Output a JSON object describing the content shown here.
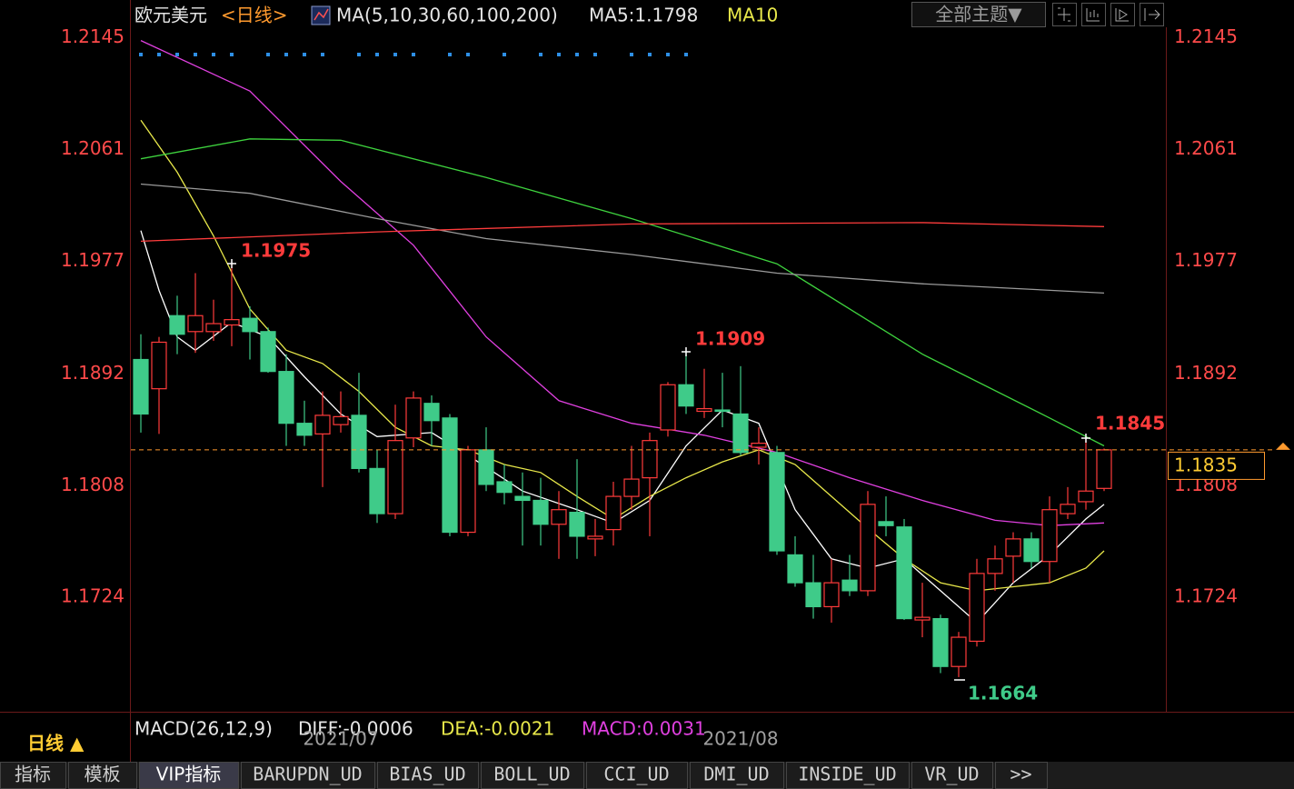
{
  "chart_data": {
    "type": "candlestick",
    "title": "欧元美元",
    "period": "<日线>",
    "indicator_label": "MA(5,10,30,60,100,200)",
    "ma_readouts": [
      "MA5:1.1798",
      "MA10"
    ],
    "categories": [
      null,
      null,
      null,
      null,
      null,
      null,
      null,
      null,
      null,
      null,
      null,
      "2021/07",
      null,
      null,
      null,
      null,
      null,
      null,
      null,
      null,
      null,
      null,
      null,
      null,
      null,
      null,
      null,
      null,
      null,
      null,
      null,
      null,
      null,
      "2021/08",
      null,
      null,
      null,
      null,
      null,
      null,
      null,
      null,
      null,
      null,
      null,
      null,
      null,
      null,
      null,
      null,
      null,
      null,
      null,
      null
    ],
    "open": [
      1.1903,
      1.1881,
      1.1936,
      1.1924,
      1.1924,
      1.1929,
      1.1934,
      1.1924,
      1.1894,
      1.1855,
      1.1847,
      1.1854,
      1.1861,
      1.1821,
      1.1787,
      1.1844,
      1.187,
      1.1859,
      1.1773,
      1.1835,
      1.1811,
      1.18,
      1.1797,
      1.1779,
      1.1788,
      1.1768,
      1.1775,
      1.18,
      1.1814,
      1.185,
      1.1884,
      1.1864,
      1.1865,
      1.1862,
      1.1837,
      1.1833,
      1.1756,
      1.1735,
      1.1717,
      1.1737,
      1.1729,
      1.1781,
      1.1777,
      1.1707,
      1.1708,
      1.1672,
      1.1691,
      1.1742,
      1.1755,
      1.1768,
      1.1751,
      1.1787,
      1.1796,
      1.1806
    ],
    "close": [
      1.1862,
      1.1916,
      1.1922,
      1.1936,
      1.193,
      1.1933,
      1.1924,
      1.1894,
      1.1855,
      1.1846,
      1.1861,
      1.186,
      1.1821,
      1.1787,
      1.1842,
      1.1874,
      1.1857,
      1.1773,
      1.1835,
      1.1809,
      1.1803,
      1.1797,
      1.1779,
      1.179,
      1.177,
      1.177,
      1.18,
      1.1813,
      1.1842,
      1.1884,
      1.1868,
      1.1866,
      1.1864,
      1.1833,
      1.184,
      1.1759,
      1.1735,
      1.1717,
      1.1735,
      1.1729,
      1.1794,
      1.1778,
      1.1708,
      1.1709,
      1.1672,
      1.1694,
      1.1742,
      1.1753,
      1.1768,
      1.1751,
      1.179,
      1.1794,
      1.1804,
      1.1835
    ],
    "high": [
      1.1922,
      1.192,
      1.1951,
      1.1968,
      1.1948,
      1.1975,
      1.1943,
      1.1927,
      1.1907,
      1.1872,
      1.1879,
      1.1879,
      1.1893,
      1.1835,
      1.1869,
      1.1879,
      1.1876,
      1.1862,
      1.1838,
      1.1852,
      1.1824,
      1.1818,
      1.1814,
      1.1804,
      1.1828,
      1.1783,
      1.1811,
      1.1838,
      1.1848,
      1.1886,
      1.1909,
      1.1896,
      1.1893,
      1.1898,
      1.1852,
      1.1838,
      1.177,
      1.1756,
      1.1753,
      1.1756,
      1.1804,
      1.18,
      1.1783,
      1.1735,
      1.1711,
      1.1698,
      1.1753,
      1.1763,
      1.1773,
      1.1773,
      1.18,
      1.1807,
      1.1845,
      1.1836
    ],
    "low": [
      1.1848,
      1.1847,
      1.1907,
      1.1908,
      1.1917,
      1.1913,
      1.1903,
      1.1893,
      1.1838,
      1.1838,
      1.1807,
      1.1848,
      1.1818,
      1.178,
      1.1783,
      1.1837,
      1.1838,
      1.177,
      1.177,
      1.1804,
      1.1794,
      1.1763,
      1.1763,
      1.1753,
      1.1753,
      1.1755,
      1.1763,
      1.179,
      1.177,
      1.1845,
      1.1862,
      1.1859,
      1.1852,
      1.1831,
      1.1824,
      1.1756,
      1.1732,
      1.1708,
      1.1705,
      1.1725,
      1.1725,
      1.177,
      1.1707,
      1.1694,
      1.1667,
      1.1664,
      1.1687,
      1.1729,
      1.1735,
      1.1746,
      1.1735,
      1.1783,
      1.179,
      1.1804
    ],
    "up_color": "#ff3b3b",
    "down_color": "#3fcb89",
    "ylim": [
      1.164,
      1.2153
    ],
    "yticks": [
      1.2145,
      1.2061,
      1.1977,
      1.1892,
      1.1808,
      1.1724
    ],
    "tick_color": "#ff4a4a",
    "grid": false,
    "current_price": 1.1835,
    "series": [
      {
        "color": "#ffffff",
        "x": [
          0,
          1,
          2,
          3,
          5,
          7,
          9,
          11,
          13,
          16,
          18,
          21,
          24,
          26,
          28,
          30,
          32,
          34,
          36,
          38,
          40,
          42,
          44,
          46,
          48,
          50,
          52,
          53
        ],
        "values": [
          1.2,
          1.1955,
          1.192,
          1.191,
          1.1931,
          1.192,
          1.189,
          1.1862,
          1.1845,
          1.1848,
          1.1831,
          1.1804,
          1.179,
          1.178,
          1.1797,
          1.1838,
          1.1865,
          1.1855,
          1.179,
          1.1753,
          1.1746,
          1.1753,
          1.1729,
          1.1705,
          1.1735,
          1.1756,
          1.1783,
          1.1794
        ]
      },
      {
        "color": "#e8e84a",
        "x": [
          0,
          2,
          4,
          6,
          8,
          10,
          12,
          14,
          16,
          18,
          20,
          22,
          24,
          26,
          28,
          30,
          32,
          34,
          36,
          38,
          40,
          42,
          44,
          46,
          48,
          50,
          52,
          53
        ],
        "values": [
          1.2083,
          1.2044,
          1.1996,
          1.1941,
          1.191,
          1.19,
          1.1879,
          1.1852,
          1.1838,
          1.1835,
          1.1824,
          1.1818,
          1.18,
          1.1783,
          1.18,
          1.1814,
          1.1826,
          1.1835,
          1.1824,
          1.18,
          1.1776,
          1.1753,
          1.1735,
          1.1729,
          1.1732,
          1.1735,
          1.1746,
          1.1759
        ]
      },
      {
        "color": "#e040e0",
        "x": [
          0,
          6,
          11,
          15,
          19,
          23,
          27,
          31,
          35,
          39,
          43,
          47,
          50,
          53
        ],
        "values": [
          1.2143,
          1.2105,
          1.2037,
          1.1989,
          1.192,
          1.1872,
          1.1855,
          1.1846,
          1.1833,
          1.1814,
          1.1797,
          1.1782,
          1.1778,
          1.178
        ]
      },
      {
        "color": "#3ed23e",
        "x": [
          0,
          6,
          11,
          19,
          27,
          35,
          43,
          50,
          53
        ],
        "values": [
          1.2054,
          1.2069,
          1.2068,
          1.204,
          1.2009,
          1.1975,
          1.1907,
          1.1859,
          1.1838
        ]
      },
      {
        "color": "#9a9a9a",
        "x": [
          0,
          6,
          13,
          19,
          27,
          35,
          43,
          53
        ],
        "values": [
          1.2035,
          1.2028,
          1.2009,
          1.1994,
          1.1982,
          1.1968,
          1.196,
          1.1953
        ]
      },
      {
        "color": "#ff3c3c",
        "x": [
          0,
          13,
          27,
          43,
          53
        ],
        "values": [
          1.1992,
          1.1999,
          1.2005,
          1.2006,
          1.2003
        ]
      }
    ],
    "annotations": [
      "1.1975",
      "1.1909",
      "1.1845",
      "1.1664"
    ],
    "macd": {
      "title": "MACD(26,12,9)",
      "diff": "DIFF:-0.0006",
      "dea": "DEA:-0.0021",
      "macd": "MACD:0.0031"
    }
  },
  "ui": {
    "theme_button": "全部主题▼",
    "period_badge": "日线 ▲",
    "tabs": [
      "指标",
      "模板",
      "VIP指标",
      "BARUPDN_UD",
      "BIAS_UD",
      "BOLL_UD",
      "CCI_UD",
      "DMI_UD",
      "INSIDE_UD",
      "VR_UD",
      ">>"
    ]
  }
}
